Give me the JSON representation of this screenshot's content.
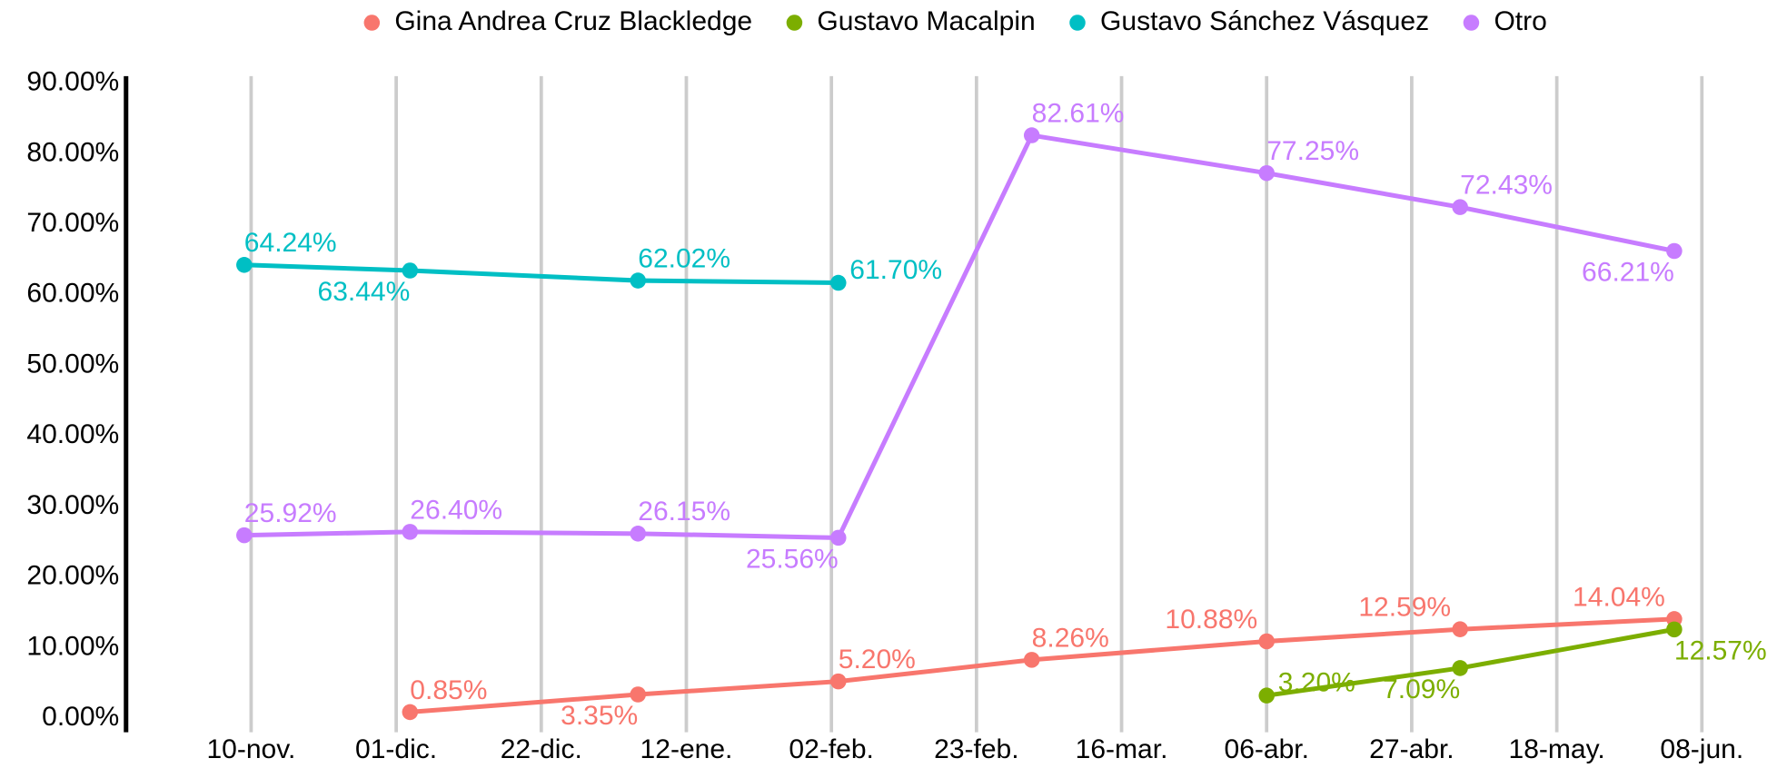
{
  "chart_data": {
    "type": "line",
    "x": [
      "09-nov.",
      "03-dic.",
      "05-ene.",
      "03-feb.",
      "03-mar.",
      "06-abr.",
      "04-may.",
      "04-jun."
    ],
    "series": [
      {
        "name": "Gina Andrea Cruz Blackledge",
        "color": "#f8766d",
        "values": [
          null,
          0.85,
          3.35,
          5.2,
          8.26,
          10.88,
          12.59,
          14.04
        ],
        "value_labels": [
          null,
          "0.85%",
          "3.35%",
          "5.20%",
          "8.26%",
          "10.88%",
          "12.59%",
          "14.04%"
        ]
      },
      {
        "name": "Gustavo Macalpin",
        "color": "#7cae00",
        "values": [
          null,
          null,
          null,
          null,
          null,
          3.2,
          7.09,
          12.57
        ],
        "value_labels": [
          null,
          null,
          null,
          null,
          null,
          "3.20%",
          "7.09%",
          "12.57%"
        ]
      },
      {
        "name": "Gustavo Sánchez Vásquez",
        "color": "#00bfc4",
        "values": [
          64.24,
          63.44,
          62.02,
          61.7,
          null,
          null,
          null,
          null
        ],
        "value_labels": [
          "64.24%",
          "63.44%",
          "62.02%",
          "61.70%",
          null,
          null,
          null,
          null
        ]
      },
      {
        "name": "Otro",
        "color": "#c77cff",
        "values": [
          25.92,
          26.4,
          26.15,
          25.56,
          82.61,
          77.25,
          72.43,
          66.21
        ],
        "value_labels": [
          "25.92%",
          "26.40%",
          "26.15%",
          "25.56%",
          "82.61%",
          "77.25%",
          "72.43%",
          "66.21%"
        ]
      }
    ],
    "xticks": [
      "10-nov.",
      "01-dic.",
      "22-dic.",
      "12-ene.",
      "02-feb.",
      "23-feb.",
      "16-mar.",
      "06-abr.",
      "27-abr.",
      "18-may.",
      "08-jun."
    ],
    "ylim": [
      -2,
      91
    ],
    "yticks": [
      {
        "value": 0,
        "label": "0.00%"
      },
      {
        "value": 10,
        "label": "10.00%"
      },
      {
        "value": 20,
        "label": "20.00%"
      },
      {
        "value": 30,
        "label": "30.00%"
      },
      {
        "value": 40,
        "label": "40.00%"
      },
      {
        "value": 50,
        "label": "50.00%"
      },
      {
        "value": 60,
        "label": "60.00%"
      },
      {
        "value": 70,
        "label": "70.00%"
      },
      {
        "value": 80,
        "label": "80.00%"
      },
      {
        "value": 90,
        "label": "90.00%"
      }
    ],
    "grid": "x",
    "legend": "top"
  }
}
